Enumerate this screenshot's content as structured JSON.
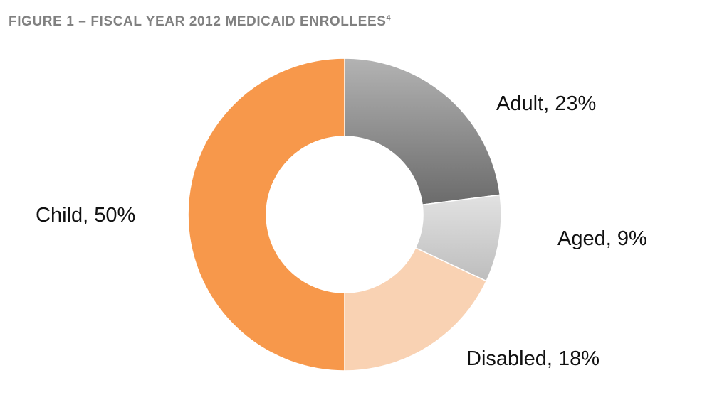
{
  "title": {
    "text": "FIGURE 1 – FISCAL YEAR 2012 MEDICAID ENROLLEES",
    "superscript": "4"
  },
  "chart_data": {
    "type": "pie",
    "donut": true,
    "title": "FIGURE 1 – FISCAL YEAR 2012 MEDICAID ENROLLEES",
    "slices": [
      {
        "name": "Adult",
        "value": 23,
        "label": "Adult, 23%",
        "color": "#6b6b6b",
        "color_light": "#b3b3b3"
      },
      {
        "name": "Aged",
        "value": 9,
        "label": "Aged, 9%",
        "color": "#bdbdbd",
        "color_light": "#e2e2e2"
      },
      {
        "name": "Disabled",
        "value": 18,
        "label": "Disabled, 18%",
        "color": "#f9d2b3",
        "color_light": "#f9d2b3"
      },
      {
        "name": "Child",
        "value": 50,
        "label": "Child, 50%",
        "color": "#f7984b",
        "color_light": "#f7984b"
      }
    ],
    "start_angle_deg": 0,
    "direction": "clockwise",
    "legend": "none"
  }
}
